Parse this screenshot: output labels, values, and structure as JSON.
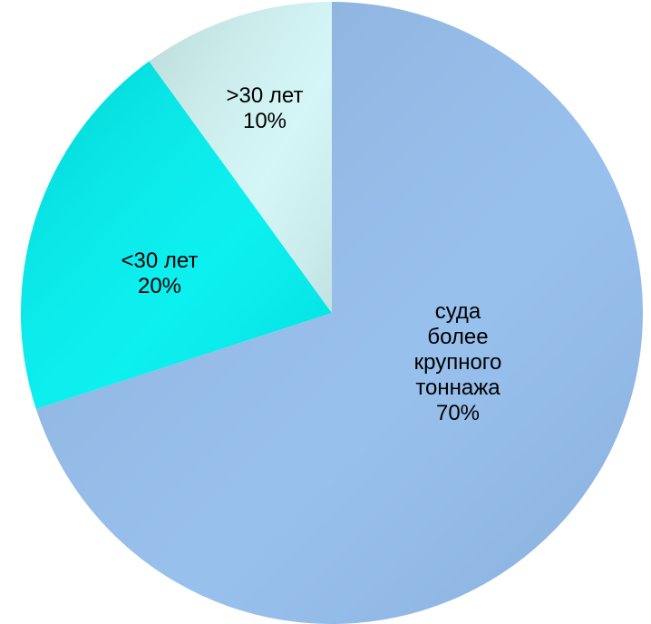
{
  "chart_data": {
    "type": "pie",
    "categories": [
      "суда более крупного тоннажа",
      "<30 лет",
      ">30 лет"
    ],
    "values": [
      70,
      20,
      10
    ],
    "value_labels": [
      "70%",
      "20%",
      "10%"
    ],
    "colors": [
      "#93bdec",
      "#00efef",
      "#d2f5f5"
    ]
  }
}
